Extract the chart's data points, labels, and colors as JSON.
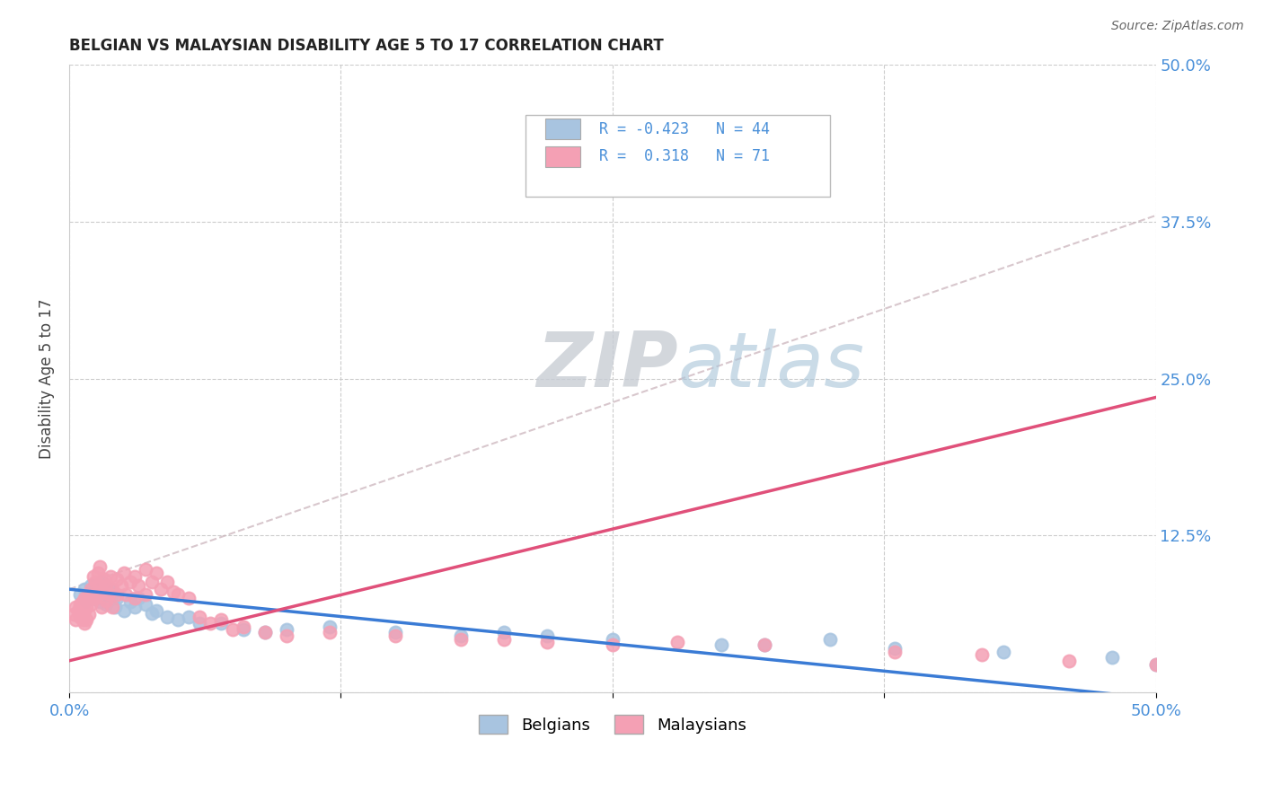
{
  "title": "BELGIAN VS MALAYSIAN DISABILITY AGE 5 TO 17 CORRELATION CHART",
  "source_text": "Source: ZipAtlas.com",
  "ylabel": "Disability Age 5 to 17",
  "xlim": [
    0.0,
    0.5
  ],
  "ylim": [
    0.0,
    0.5
  ],
  "belgian_R": -0.423,
  "belgian_N": 44,
  "malaysian_R": 0.318,
  "malaysian_N": 71,
  "belgian_color": "#a8c4e0",
  "malaysian_color": "#f4a0b4",
  "belgian_line_color": "#3a7bd5",
  "malaysian_line_color": "#e0507a",
  "axis_label_color": "#4a90d9",
  "tick_color": "#4a90d9",
  "watermark_zip_color": "#c8cdd4",
  "watermark_atlas_color": "#a8c4d8",
  "belgians_scatter": [
    [
      0.005,
      0.078
    ],
    [
      0.007,
      0.082
    ],
    [
      0.008,
      0.073
    ],
    [
      0.01,
      0.085
    ],
    [
      0.011,
      0.08
    ],
    [
      0.012,
      0.075
    ],
    [
      0.013,
      0.078
    ],
    [
      0.014,
      0.072
    ],
    [
      0.015,
      0.088
    ],
    [
      0.016,
      0.076
    ],
    [
      0.017,
      0.07
    ],
    [
      0.018,
      0.082
    ],
    [
      0.019,
      0.074
    ],
    [
      0.02,
      0.079
    ],
    [
      0.021,
      0.068
    ],
    [
      0.022,
      0.075
    ],
    [
      0.025,
      0.065
    ],
    [
      0.028,
      0.072
    ],
    [
      0.03,
      0.068
    ],
    [
      0.032,
      0.075
    ],
    [
      0.035,
      0.07
    ],
    [
      0.038,
      0.063
    ],
    [
      0.04,
      0.065
    ],
    [
      0.045,
      0.06
    ],
    [
      0.05,
      0.058
    ],
    [
      0.055,
      0.06
    ],
    [
      0.06,
      0.055
    ],
    [
      0.07,
      0.055
    ],
    [
      0.08,
      0.05
    ],
    [
      0.09,
      0.048
    ],
    [
      0.1,
      0.05
    ],
    [
      0.12,
      0.052
    ],
    [
      0.15,
      0.048
    ],
    [
      0.18,
      0.045
    ],
    [
      0.2,
      0.048
    ],
    [
      0.22,
      0.045
    ],
    [
      0.25,
      0.042
    ],
    [
      0.3,
      0.038
    ],
    [
      0.32,
      0.038
    ],
    [
      0.35,
      0.042
    ],
    [
      0.38,
      0.035
    ],
    [
      0.43,
      0.032
    ],
    [
      0.48,
      0.028
    ],
    [
      0.5,
      0.022
    ]
  ],
  "malaysians_scatter": [
    [
      0.002,
      0.062
    ],
    [
      0.003,
      0.068
    ],
    [
      0.003,
      0.058
    ],
    [
      0.004,
      0.065
    ],
    [
      0.005,
      0.07
    ],
    [
      0.005,
      0.06
    ],
    [
      0.006,
      0.072
    ],
    [
      0.006,
      0.058
    ],
    [
      0.007,
      0.075
    ],
    [
      0.007,
      0.065
    ],
    [
      0.007,
      0.055
    ],
    [
      0.008,
      0.068
    ],
    [
      0.008,
      0.058
    ],
    [
      0.009,
      0.078
    ],
    [
      0.009,
      0.062
    ],
    [
      0.01,
      0.082
    ],
    [
      0.01,
      0.07
    ],
    [
      0.011,
      0.092
    ],
    [
      0.011,
      0.075
    ],
    [
      0.012,
      0.088
    ],
    [
      0.012,
      0.075
    ],
    [
      0.013,
      0.095
    ],
    [
      0.013,
      0.078
    ],
    [
      0.014,
      0.085
    ],
    [
      0.014,
      0.1
    ],
    [
      0.015,
      0.068
    ],
    [
      0.015,
      0.08
    ],
    [
      0.016,
      0.09
    ],
    [
      0.017,
      0.073
    ],
    [
      0.017,
      0.085
    ],
    [
      0.018,
      0.078
    ],
    [
      0.019,
      0.092
    ],
    [
      0.02,
      0.082
    ],
    [
      0.02,
      0.068
    ],
    [
      0.022,
      0.078
    ],
    [
      0.022,
      0.09
    ],
    [
      0.024,
      0.085
    ],
    [
      0.025,
      0.095
    ],
    [
      0.026,
      0.078
    ],
    [
      0.028,
      0.088
    ],
    [
      0.03,
      0.092
    ],
    [
      0.03,
      0.075
    ],
    [
      0.032,
      0.085
    ],
    [
      0.035,
      0.098
    ],
    [
      0.035,
      0.078
    ],
    [
      0.038,
      0.088
    ],
    [
      0.04,
      0.095
    ],
    [
      0.042,
      0.082
    ],
    [
      0.045,
      0.088
    ],
    [
      0.048,
      0.08
    ],
    [
      0.05,
      0.078
    ],
    [
      0.055,
      0.075
    ],
    [
      0.06,
      0.06
    ],
    [
      0.065,
      0.055
    ],
    [
      0.07,
      0.058
    ],
    [
      0.075,
      0.05
    ],
    [
      0.08,
      0.052
    ],
    [
      0.09,
      0.048
    ],
    [
      0.1,
      0.045
    ],
    [
      0.12,
      0.048
    ],
    [
      0.15,
      0.045
    ],
    [
      0.18,
      0.042
    ],
    [
      0.2,
      0.042
    ],
    [
      0.22,
      0.04
    ],
    [
      0.25,
      0.038
    ],
    [
      0.28,
      0.04
    ],
    [
      0.32,
      0.038
    ],
    [
      0.38,
      0.032
    ],
    [
      0.42,
      0.03
    ],
    [
      0.46,
      0.025
    ],
    [
      0.5,
      0.022
    ]
  ],
  "belgian_trend": [
    0.0,
    0.5,
    0.082,
    -0.005
  ],
  "malaysian_trend": [
    0.0,
    0.5,
    0.025,
    0.235
  ],
  "dashed_line": [
    0.0,
    0.5,
    0.082,
    0.38
  ]
}
